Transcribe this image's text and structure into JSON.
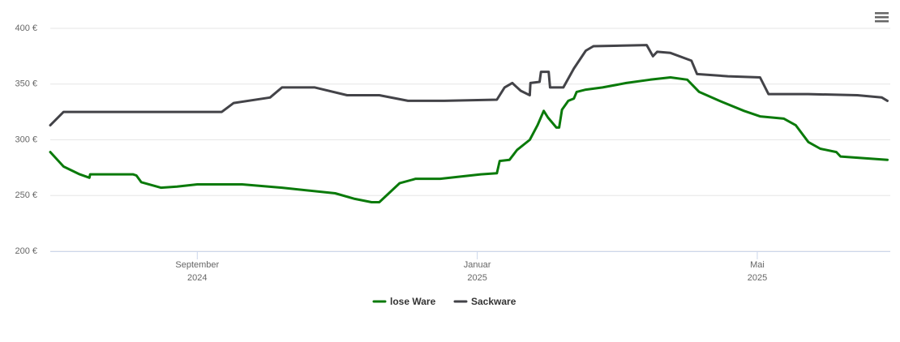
{
  "chart_data": {
    "type": "line",
    "xlim": [
      6.9,
      18.9
    ],
    "xticks": [
      {
        "value": 9,
        "label": "September 2024"
      },
      {
        "value": 13,
        "label": "Januar 2025"
      },
      {
        "value": 17,
        "label": "Mai 2025"
      }
    ],
    "ylim": [
      200,
      400
    ],
    "yticks": [
      {
        "value": 200,
        "label": "200 €"
      },
      {
        "value": 250,
        "label": "250 €"
      },
      {
        "value": 300,
        "label": "300 €"
      },
      {
        "value": 350,
        "label": "350 €"
      },
      {
        "value": 400,
        "label": "400 €"
      }
    ],
    "grid": true,
    "legend": "bottom",
    "series": [
      {
        "name": "lose Ware",
        "color": "#0a7a0a",
        "x": [
          6.9,
          7.09,
          7.32,
          7.46,
          7.47,
          8.08,
          8.13,
          8.2,
          8.48,
          8.71,
          9.0,
          9.64,
          10.21,
          10.97,
          11.25,
          11.49,
          11.6,
          11.72,
          11.89,
          12.12,
          12.47,
          12.76,
          13.05,
          13.28,
          13.32,
          13.46,
          13.57,
          13.75,
          13.86,
          13.95,
          14.01,
          14.13,
          14.17,
          14.21,
          14.3,
          14.38,
          14.42,
          14.55,
          14.79,
          15.13,
          15.47,
          15.76,
          16.0,
          16.17,
          16.46,
          16.81,
          17.04,
          17.38,
          17.55,
          17.73,
          17.9,
          18.13,
          18.19,
          18.86
        ],
        "values": [
          289,
          276,
          269,
          266,
          269,
          269,
          268,
          262,
          257,
          258,
          260,
          260,
          257,
          252,
          247,
          244,
          244,
          251,
          261,
          265,
          265,
          267,
          269,
          270,
          281,
          282,
          291,
          300,
          313,
          326,
          320,
          311,
          311,
          327,
          335,
          337,
          343,
          345,
          347,
          351,
          354,
          356,
          354,
          343,
          335,
          326,
          321,
          319,
          313,
          298,
          292,
          289,
          285,
          282
        ]
      },
      {
        "name": "Sackware",
        "color": "#434348",
        "x": [
          6.9,
          7.09,
          9.35,
          9.52,
          10.04,
          10.21,
          10.68,
          11.14,
          11.6,
          12.01,
          12.53,
          13.28,
          13.39,
          13.5,
          13.62,
          13.75,
          13.76,
          13.89,
          13.91,
          14.02,
          14.04,
          14.23,
          14.38,
          14.55,
          14.66,
          15.42,
          15.51,
          15.57,
          15.76,
          16.06,
          16.14,
          16.58,
          17.04,
          17.16,
          17.73,
          18.43,
          18.78,
          18.86
        ],
        "values": [
          313,
          325,
          325,
          333,
          338,
          347,
          347,
          340,
          340,
          335,
          335,
          336,
          347,
          351,
          344,
          340,
          351,
          352,
          361,
          361,
          347,
          347,
          364,
          380,
          384,
          385,
          375,
          379,
          378,
          371,
          359,
          357,
          356,
          341,
          341,
          340,
          338,
          335
        ]
      }
    ]
  }
}
